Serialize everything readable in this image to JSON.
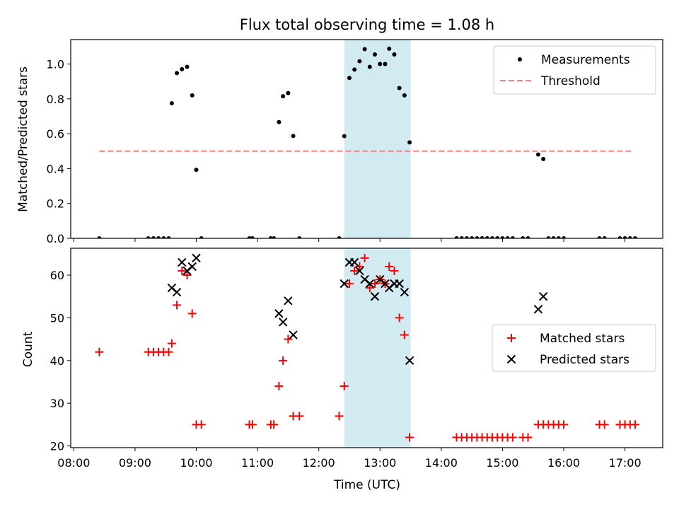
{
  "chart_data": {
    "type": "scatter",
    "title": "Flux total observing time = 1.08 h",
    "xlabel": "Time (UTC)",
    "xticks": [
      "08:00",
      "09:00",
      "10:00",
      "11:00",
      "12:00",
      "13:00",
      "14:00",
      "15:00",
      "16:00",
      "17:00"
    ],
    "xlim": [
      "07:57",
      "17:37"
    ],
    "highlight_span": {
      "from": "12:25",
      "to": "13:30",
      "color": "#add8e6"
    },
    "panels": [
      {
        "name": "ratio",
        "ylabel": "Matched/Predicted stars",
        "ylim": [
          0,
          1.14
        ],
        "yticks": [
          "0.0",
          "0.2",
          "0.4",
          "0.6",
          "0.8",
          "1.0"
        ],
        "legend_position": "top-right",
        "series": [
          {
            "name": "Measurements",
            "marker": "dot",
            "color": "#000000",
            "points": [
              [
                "08:25",
                0
              ],
              [
                "09:13",
                0
              ],
              [
                "09:18",
                0
              ],
              [
                "09:23",
                0
              ],
              [
                "09:28",
                0
              ],
              [
                "09:33",
                0
              ],
              [
                "09:36",
                0.775
              ],
              [
                "09:41",
                0.948
              ],
              [
                "09:46",
                0.97
              ],
              [
                "09:51",
                0.984
              ],
              [
                "09:56",
                0.82
              ],
              [
                "10:00",
                0.393
              ],
              [
                "10:05",
                0
              ],
              [
                "10:52",
                0
              ],
              [
                "10:55",
                0
              ],
              [
                "11:13",
                0
              ],
              [
                "11:16",
                0
              ],
              [
                "11:21",
                0.667
              ],
              [
                "11:25",
                0.815
              ],
              [
                "11:30",
                0.833
              ],
              [
                "11:35",
                0.587
              ],
              [
                "11:41",
                0
              ],
              [
                "12:20",
                0
              ],
              [
                "12:25",
                0.586
              ],
              [
                "12:30",
                0.92
              ],
              [
                "12:35",
                0.968
              ],
              [
                "12:40",
                1.016
              ],
              [
                "12:45",
                1.085
              ],
              [
                "12:50",
                0.984
              ],
              [
                "12:55",
                1.055
              ],
              [
                "13:00",
                1.0
              ],
              [
                "13:05",
                1.0
              ],
              [
                "13:09",
                1.088
              ],
              [
                "13:14",
                1.055
              ],
              [
                "13:19",
                0.862
              ],
              [
                "13:24",
                0.82
              ],
              [
                "13:29",
                0.55
              ],
              [
                "14:15",
                0
              ],
              [
                "14:20",
                0
              ],
              [
                "14:25",
                0
              ],
              [
                "14:30",
                0
              ],
              [
                "14:35",
                0
              ],
              [
                "14:40",
                0
              ],
              [
                "14:45",
                0
              ],
              [
                "14:50",
                0
              ],
              [
                "14:55",
                0
              ],
              [
                "15:00",
                0
              ],
              [
                "15:05",
                0
              ],
              [
                "15:10",
                0
              ],
              [
                "15:20",
                0
              ],
              [
                "15:25",
                0
              ],
              [
                "15:35",
                0.481
              ],
              [
                "15:40",
                0.455
              ],
              [
                "15:45",
                0
              ],
              [
                "15:50",
                0
              ],
              [
                "15:55",
                0
              ],
              [
                "16:00",
                0
              ],
              [
                "16:35",
                0
              ],
              [
                "16:40",
                0
              ],
              [
                "16:55",
                0
              ],
              [
                "17:00",
                0
              ],
              [
                "17:05",
                0
              ],
              [
                "17:10",
                0
              ]
            ]
          },
          {
            "name": "Threshold",
            "marker": "dashed-line",
            "color": "#ff7f7f",
            "points": [
              [
                "08:25",
                0.5
              ],
              [
                "17:07",
                0.5
              ]
            ]
          }
        ]
      },
      {
        "name": "counts",
        "ylabel": "Count",
        "ylim": [
          19.6,
          66.3
        ],
        "yticks": [
          "20",
          "30",
          "40",
          "50",
          "60"
        ],
        "legend_position": "center-right",
        "series": [
          {
            "name": "Matched stars",
            "marker": "plus",
            "color": "#ff0000",
            "points": [
              [
                "08:25",
                42
              ],
              [
                "09:13",
                42
              ],
              [
                "09:18",
                42
              ],
              [
                "09:23",
                42
              ],
              [
                "09:28",
                42
              ],
              [
                "09:33",
                42
              ],
              [
                "09:36",
                44
              ],
              [
                "09:41",
                53
              ],
              [
                "09:46",
                61
              ],
              [
                "09:51",
                60
              ],
              [
                "09:56",
                51
              ],
              [
                "10:00",
                25
              ],
              [
                "10:05",
                25
              ],
              [
                "10:52",
                25
              ],
              [
                "10:55",
                25
              ],
              [
                "11:13",
                25
              ],
              [
                "11:16",
                25
              ],
              [
                "11:21",
                34
              ],
              [
                "11:25",
                40
              ],
              [
                "11:30",
                45
              ],
              [
                "11:35",
                27
              ],
              [
                "11:41",
                27
              ],
              [
                "12:20",
                27
              ],
              [
                "12:25",
                34
              ],
              [
                "12:30",
                58
              ],
              [
                "12:35",
                61
              ],
              [
                "12:40",
                62
              ],
              [
                "12:45",
                64
              ],
              [
                "12:50",
                57
              ],
              [
                "12:55",
                58
              ],
              [
                "13:00",
                59
              ],
              [
                "13:05",
                58
              ],
              [
                "13:09",
                62
              ],
              [
                "13:14",
                61
              ],
              [
                "13:19",
                50
              ],
              [
                "13:24",
                46
              ],
              [
                "13:29",
                22
              ],
              [
                "14:15",
                22
              ],
              [
                "14:20",
                22
              ],
              [
                "14:25",
                22
              ],
              [
                "14:30",
                22
              ],
              [
                "14:35",
                22
              ],
              [
                "14:40",
                22
              ],
              [
                "14:45",
                22
              ],
              [
                "14:50",
                22
              ],
              [
                "14:55",
                22
              ],
              [
                "15:00",
                22
              ],
              [
                "15:05",
                22
              ],
              [
                "15:10",
                22
              ],
              [
                "15:20",
                22
              ],
              [
                "15:25",
                22
              ],
              [
                "15:35",
                25
              ],
              [
                "15:40",
                25
              ],
              [
                "15:45",
                25
              ],
              [
                "15:50",
                25
              ],
              [
                "15:55",
                25
              ],
              [
                "16:00",
                25
              ],
              [
                "16:35",
                25
              ],
              [
                "16:40",
                25
              ],
              [
                "16:55",
                25
              ],
              [
                "17:00",
                25
              ],
              [
                "17:05",
                25
              ],
              [
                "17:10",
                25
              ]
            ]
          },
          {
            "name": "Predicted stars",
            "marker": "x",
            "color": "#000000",
            "points": [
              [
                "09:36",
                57
              ],
              [
                "09:41",
                56
              ],
              [
                "09:46",
                63
              ],
              [
                "09:51",
                61
              ],
              [
                "09:56",
                62
              ],
              [
                "10:00",
                64
              ],
              [
                "11:21",
                51
              ],
              [
                "11:25",
                49
              ],
              [
                "11:30",
                54
              ],
              [
                "11:35",
                46
              ],
              [
                "12:25",
                58
              ],
              [
                "12:30",
                63
              ],
              [
                "12:35",
                63
              ],
              [
                "12:40",
                61
              ],
              [
                "12:45",
                59
              ],
              [
                "12:50",
                58
              ],
              [
                "12:55",
                55
              ],
              [
                "13:00",
                59
              ],
              [
                "13:05",
                58
              ],
              [
                "13:09",
                57
              ],
              [
                "13:14",
                58
              ],
              [
                "13:19",
                58
              ],
              [
                "13:24",
                56
              ],
              [
                "13:29",
                40
              ],
              [
                "15:35",
                52
              ],
              [
                "15:40",
                55
              ]
            ]
          }
        ]
      }
    ]
  }
}
